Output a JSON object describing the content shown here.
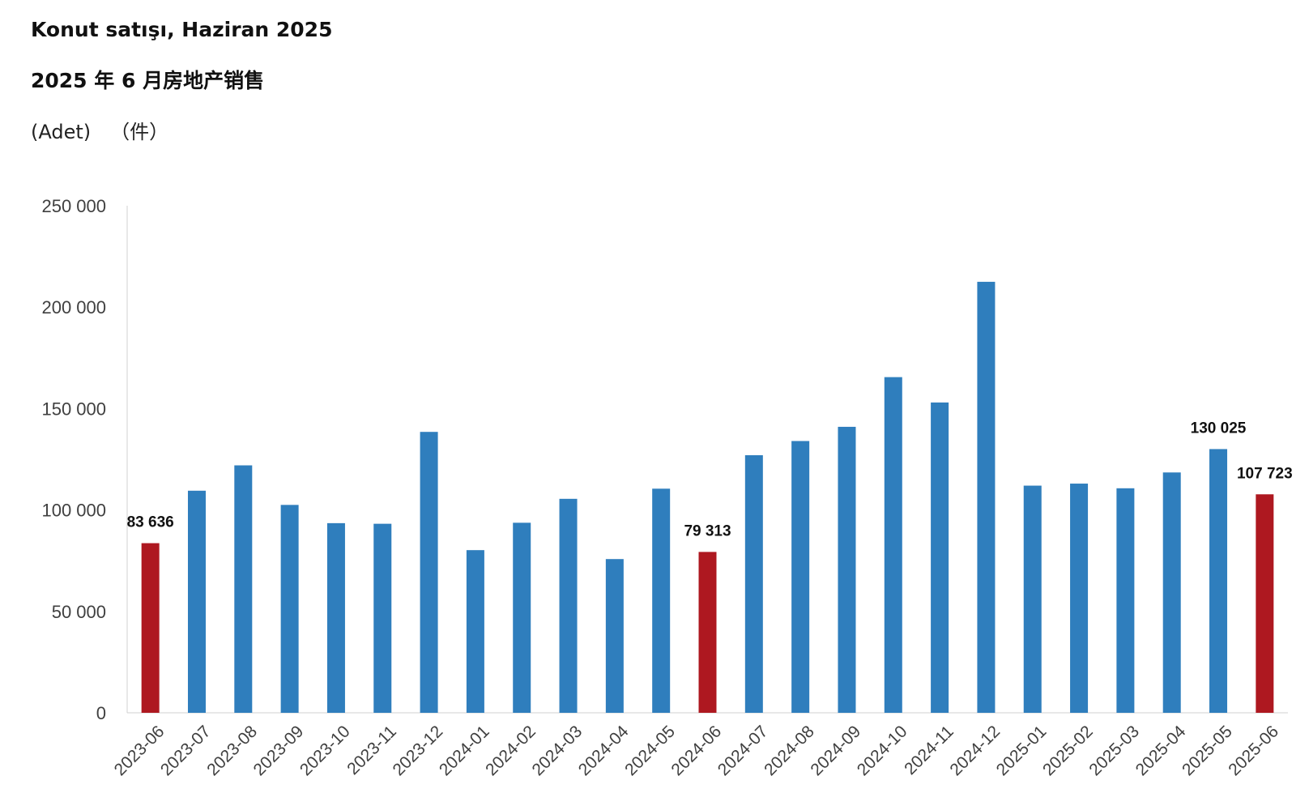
{
  "header": {
    "title_tr": "Konut satışı, Haziran 2025",
    "title_zh": "2025 年 6 月房地产销售",
    "unit_tr": "(Adet)",
    "unit_zh": "（件）"
  },
  "colors": {
    "bar_default": "#2f7ebd",
    "bar_highlight": "#ae1820",
    "axis": "#d0d0d0"
  },
  "chart_data": {
    "type": "bar",
    "title": "Konut satışı, Haziran 2025",
    "subtitle": "2025 年 6 月房地产销售",
    "ylabel": "(Adet) （件）",
    "xlabel": "",
    "ylim": [
      0,
      250000
    ],
    "yticks": [
      0,
      50000,
      100000,
      150000,
      200000,
      250000
    ],
    "ytick_labels": [
      "0",
      "50 000",
      "100 000",
      "150 000",
      "200 000",
      "250 000"
    ],
    "grid": false,
    "categories": [
      "2023-06",
      "2023-07",
      "2023-08",
      "2023-09",
      "2023-10",
      "2023-11",
      "2023-12",
      "2024-01",
      "2024-02",
      "2024-03",
      "2024-04",
      "2024-05",
      "2024-06",
      "2024-07",
      "2024-08",
      "2024-09",
      "2024-10",
      "2024-11",
      "2024-12",
      "2025-01",
      "2025-02",
      "2025-03",
      "2025-04",
      "2025-05",
      "2025-06"
    ],
    "values": [
      83636,
      109500,
      122000,
      102500,
      93500,
      93200,
      138500,
      80200,
      93700,
      105500,
      75800,
      110500,
      79313,
      127000,
      134000,
      141000,
      165500,
      153000,
      212500,
      112000,
      113000,
      110700,
      118500,
      130025,
      107723
    ],
    "highlighted": [
      "2023-06",
      "2024-06",
      "2025-06"
    ],
    "data_labels": [
      {
        "category": "2023-06",
        "text": "83 636"
      },
      {
        "category": "2024-06",
        "text": "79 313"
      },
      {
        "category": "2025-05",
        "text": "130 025"
      },
      {
        "category": "2025-06",
        "text": "107 723"
      }
    ]
  }
}
